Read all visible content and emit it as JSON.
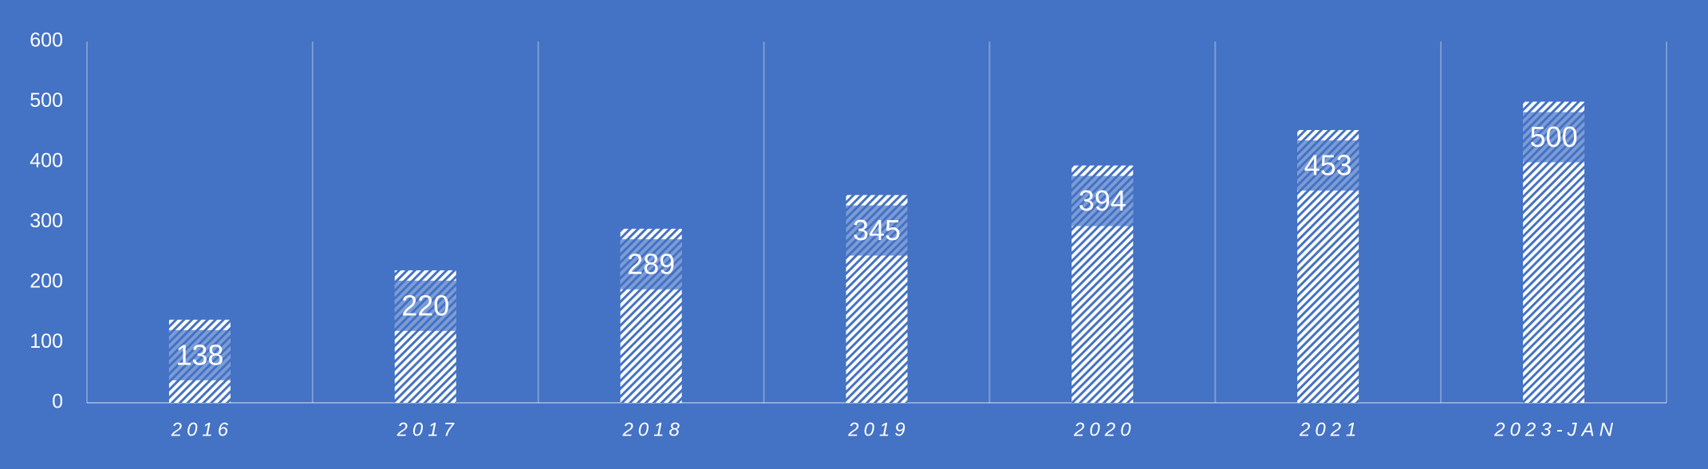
{
  "chart_data": {
    "type": "bar",
    "categories": [
      "2016",
      "2017",
      "2018",
      "2019",
      "2020",
      "2021",
      "2023-JAN"
    ],
    "values": [
      138,
      220,
      289,
      345,
      394,
      453,
      500
    ],
    "color": "#ffffff",
    "background": "#4472c4",
    "ylim": [
      0,
      600
    ],
    "yticks": [
      0,
      100,
      200,
      300,
      400,
      500,
      600
    ],
    "grid": true
  }
}
